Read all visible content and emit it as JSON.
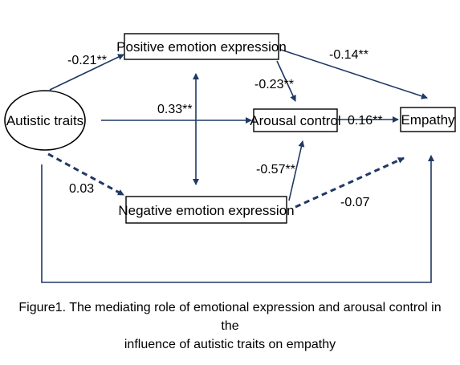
{
  "colors": {
    "arrow": "#1f3864",
    "box_border": "#000000",
    "text": "#000000",
    "background": "#ffffff"
  },
  "nodes": {
    "autistic_traits": "Autistic traits",
    "positive_expression": "Positive emotion expression",
    "negative_expression": "Negative emotion expression",
    "arousal_control": "Arousal control",
    "empathy": "Empathy"
  },
  "paths": {
    "autism_to_positive": "-0.21**",
    "positive_to_empathy": "-0.14**",
    "positive_to_arousal": "-0.23**",
    "autism_to_arousal": "0.33**",
    "arousal_to_empathy": "0.16**",
    "negative_to_arousal": "-0.57**",
    "autism_to_negative": "0.03",
    "negative_to_empathy": "-0.07"
  },
  "caption": {
    "line1": "Figure1. The mediating role of emotional expression and arousal control in the",
    "line2": "influence of autistic traits on empathy"
  }
}
